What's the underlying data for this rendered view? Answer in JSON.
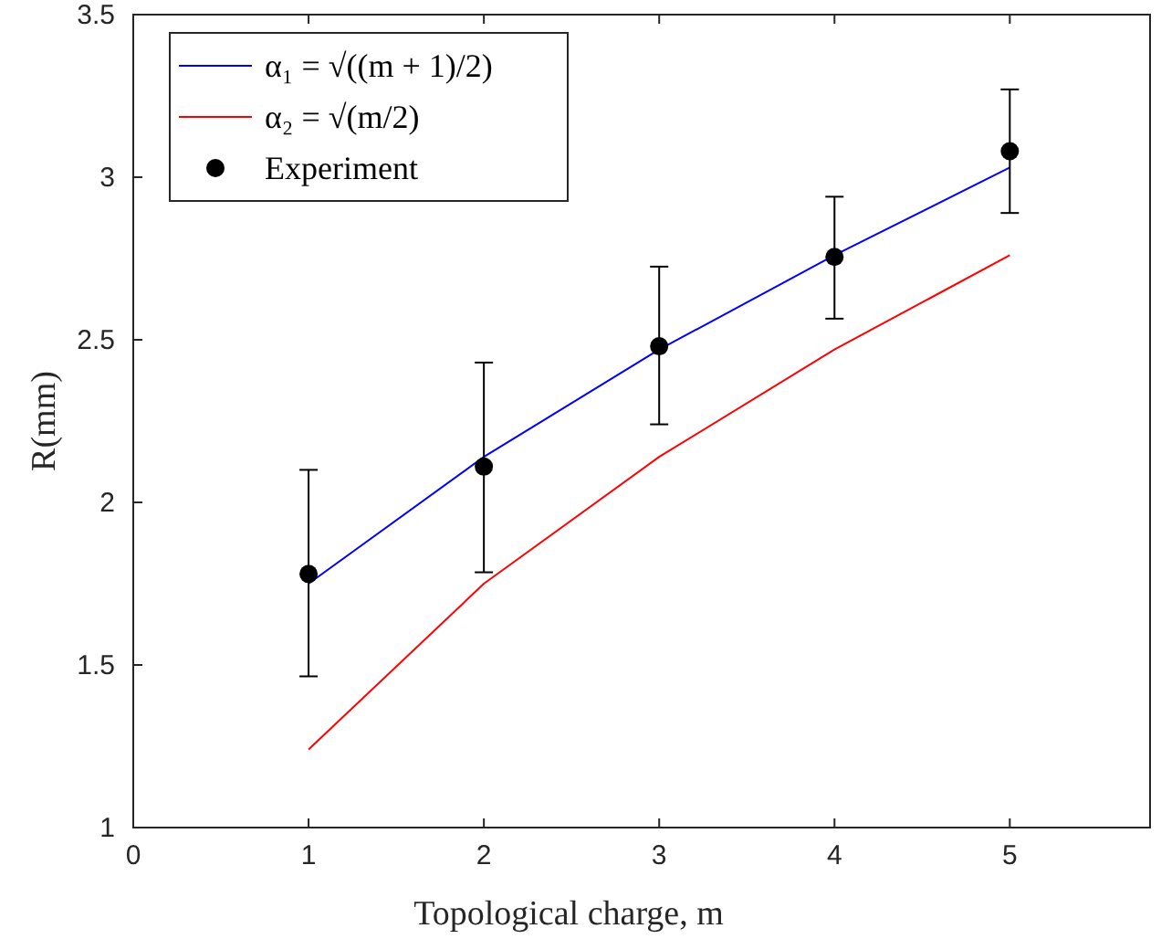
{
  "chart_data": {
    "type": "line",
    "xlabel": "Topological charge, m",
    "ylabel": "R(mm)",
    "x": [
      1,
      2,
      3,
      4,
      5
    ],
    "xlim": [
      0,
      5.8
    ],
    "xticks": [
      0,
      1,
      2,
      3,
      4,
      5
    ],
    "ylim": [
      1,
      3.5
    ],
    "yticks": [
      1,
      1.5,
      2,
      2.5,
      3,
      3.5
    ],
    "series": [
      {
        "name": "α₁ = √((m + 1)/2)",
        "color": "#0000ff",
        "values": [
          1.75,
          2.14,
          2.47,
          2.76,
          3.03
        ]
      },
      {
        "name": "α₂ = √(m/2)",
        "color": "#ff0000",
        "values": [
          1.24,
          1.75,
          2.14,
          2.47,
          2.76
        ]
      },
      {
        "name": "Experiment",
        "type": "scatter",
        "color": "#000000",
        "marker": "circle",
        "values": [
          1.78,
          2.11,
          2.48,
          2.755,
          3.08
        ],
        "errors": [
          [
            1.465,
            2.1
          ],
          [
            1.785,
            2.43
          ],
          [
            2.24,
            2.725
          ],
          [
            2.565,
            2.94
          ],
          [
            2.89,
            3.27
          ]
        ]
      }
    ],
    "legend": "top left",
    "grid": false
  }
}
